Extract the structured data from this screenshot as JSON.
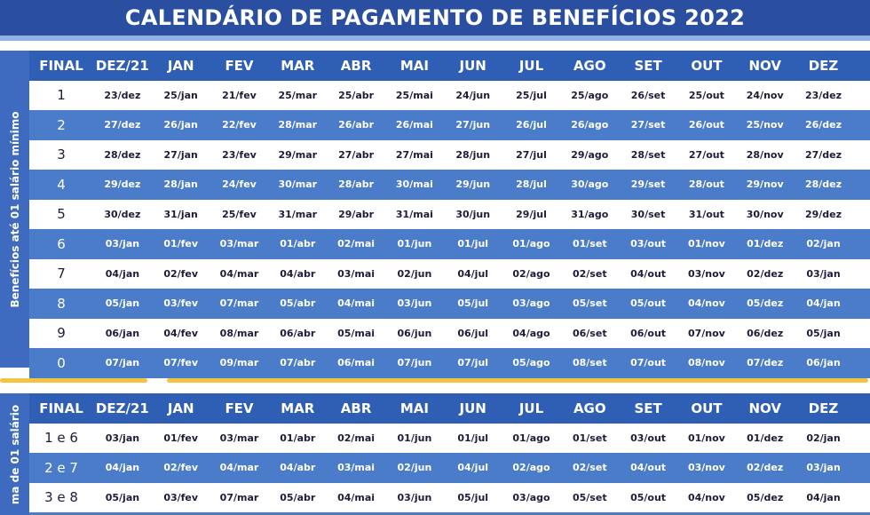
{
  "header": {
    "title": "CALENDÁRIO DE PAGAMENTO DE BENEFÍCIOS 2022"
  },
  "tables": [
    {
      "side_label": "Benefícios até 01 salário mínimo",
      "header": [
        "FINAL",
        "DEZ/21",
        "JAN",
        "FEV",
        "MAR",
        "ABR",
        "MAI",
        "JUN",
        "JUL",
        "AGO",
        "SET",
        "OUT",
        "NOV",
        "DEZ"
      ],
      "rows": [
        [
          "1",
          "23/dez",
          "25/jan",
          "21/fev",
          "25/mar",
          "25/abr",
          "25/mai",
          "24/jun",
          "25/jul",
          "25/ago",
          "26/set",
          "25/out",
          "24/nov",
          "23/dez"
        ],
        [
          "2",
          "27/dez",
          "26/jan",
          "22/fev",
          "28/mar",
          "26/abr",
          "26/mai",
          "27/jun",
          "26/jul",
          "26/ago",
          "27/set",
          "26/out",
          "25/nov",
          "26/dez"
        ],
        [
          "3",
          "28/dez",
          "27/jan",
          "23/fev",
          "29/mar",
          "27/abr",
          "27/mai",
          "28/jun",
          "27/jul",
          "29/ago",
          "28/set",
          "27/out",
          "28/nov",
          "27/dez"
        ],
        [
          "4",
          "29/dez",
          "28/jan",
          "24/fev",
          "30/mar",
          "28/abr",
          "30/mai",
          "29/jun",
          "28/jul",
          "30/ago",
          "29/set",
          "28/out",
          "29/nov",
          "28/dez"
        ],
        [
          "5",
          "30/dez",
          "31/jan",
          "25/fev",
          "31/mar",
          "29/abr",
          "31/mai",
          "30/jun",
          "29/jul",
          "31/ago",
          "30/set",
          "31/out",
          "30/nov",
          "29/dez"
        ],
        [
          "6",
          "03/jan",
          "01/fev",
          "03/mar",
          "01/abr",
          "02/mai",
          "01/jun",
          "01/jul",
          "01/ago",
          "01/set",
          "03/out",
          "01/nov",
          "01/dez",
          "02/jan"
        ],
        [
          "7",
          "04/jan",
          "02/fev",
          "04/mar",
          "04/abr",
          "03/mai",
          "02/jun",
          "04/jul",
          "02/ago",
          "02/set",
          "04/out",
          "03/nov",
          "02/dez",
          "03/jan"
        ],
        [
          "8",
          "05/jan",
          "03/fev",
          "07/mar",
          "05/abr",
          "04/mai",
          "03/jun",
          "05/jul",
          "03/ago",
          "05/set",
          "05/out",
          "04/nov",
          "05/dez",
          "04/jan"
        ],
        [
          "9",
          "06/jan",
          "04/fev",
          "08/mar",
          "06/abr",
          "05/mai",
          "06/jun",
          "06/jul",
          "04/ago",
          "06/set",
          "06/out",
          "07/nov",
          "06/dez",
          "05/jan"
        ],
        [
          "0",
          "07/jan",
          "07/fev",
          "09/mar",
          "07/abr",
          "06/mai",
          "07/jun",
          "07/jul",
          "05/ago",
          "08/set",
          "07/out",
          "08/nov",
          "07/dez",
          "06/jan"
        ]
      ]
    },
    {
      "side_label": "ma de 01 salário",
      "header": [
        "FINAL",
        "DEZ/21",
        "JAN",
        "FEV",
        "MAR",
        "ABR",
        "MAI",
        "JUN",
        "JUL",
        "AGO",
        "SET",
        "OUT",
        "NOV",
        "DEZ"
      ],
      "rows": [
        [
          "1 e 6",
          "03/jan",
          "01/fev",
          "03/mar",
          "01/abr",
          "02/mai",
          "01/jun",
          "01/jul",
          "01/ago",
          "01/set",
          "03/out",
          "01/nov",
          "01/dez",
          "02/jan"
        ],
        [
          "2 e 7",
          "04/jan",
          "02/fev",
          "04/mar",
          "04/abr",
          "03/mai",
          "02/jun",
          "04/jul",
          "02/ago",
          "02/set",
          "04/out",
          "03/nov",
          "02/dez",
          "03/jan"
        ],
        [
          "3 e 8",
          "05/jan",
          "03/fev",
          "07/mar",
          "05/abr",
          "04/mai",
          "03/jun",
          "05/jul",
          "03/ago",
          "05/set",
          "05/out",
          "04/nov",
          "05/dez",
          "04/jan"
        ]
      ]
    }
  ]
}
